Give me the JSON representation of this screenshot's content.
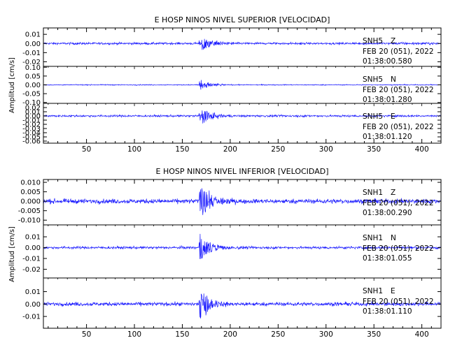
{
  "chart_data": [
    {
      "type": "line",
      "title": "E HOSP NINOS NIVEL SUPERIOR [VELOCIDAD]",
      "ylabel": "Amplitud [cm/s]",
      "xlabel": "",
      "xlim": [
        5,
        420
      ],
      "x_ticks": [
        50,
        100,
        150,
        200,
        250,
        300,
        350,
        400
      ],
      "x_tick_labels": [
        "50",
        "100",
        "150",
        "200",
        "250",
        "300",
        "350",
        "400"
      ],
      "grid": false,
      "series_color": "#1a1aff",
      "series": [
        {
          "station": "SNH5",
          "component": "Z",
          "date": "FEB 20 (051), 2022",
          "time": "01:38:00.580",
          "ylim": [
            -0.025,
            0.017
          ],
          "y_ticks": [
            0.01,
            0.0,
            -0.01,
            -0.02
          ],
          "y_tick_labels": [
            "0.01",
            "0.00",
            "-0.01",
            "-0.02"
          ],
          "noise": 0.0012,
          "event_start": 167,
          "event_peak": 0.011,
          "decay": 12
        },
        {
          "station": "SNH5",
          "component": "N",
          "date": "FEB 20 (051), 2022",
          "time": "01:38:01.280",
          "ylim": [
            -0.105,
            0.105
          ],
          "y_ticks": [
            0.1,
            0.05,
            0.0,
            -0.05,
            -0.1
          ],
          "y_tick_labels": [
            "0.10",
            "0.05",
            "0.00",
            "-0.05",
            "-0.10"
          ],
          "noise": 0.0025,
          "event_start": 167,
          "event_peak": 0.04,
          "decay": 10
        },
        {
          "station": "SNH5",
          "component": "E",
          "date": "FEB 20 (051), 2022",
          "time": "01:38:01.120",
          "ylim": [
            -0.065,
            0.03
          ],
          "y_ticks": [
            0.02,
            0.01,
            0.0,
            -0.01,
            -0.02,
            -0.03,
            -0.04,
            -0.05,
            -0.06
          ],
          "y_tick_labels": [
            "0.02",
            "0.01",
            "0.00",
            "-0.01",
            "-0.02",
            "-0.03",
            "-0.04",
            "-0.05",
            "-0.06"
          ],
          "noise": 0.0025,
          "event_start": 167,
          "event_peak": 0.025,
          "decay": 12
        }
      ]
    },
    {
      "type": "line",
      "title": "E HOSP NINOS NIVEL INFERIOR [VELOCIDAD]",
      "ylabel": "Amplitud [cm/s]",
      "xlabel": "",
      "xlim": [
        5,
        420
      ],
      "x_ticks": [
        50,
        100,
        150,
        200,
        250,
        300,
        350,
        400
      ],
      "x_tick_labels": [
        "50",
        "100",
        "150",
        "200",
        "250",
        "300",
        "350",
        "400"
      ],
      "grid": false,
      "series_color": "#1a1aff",
      "series": [
        {
          "station": "SNH1",
          "component": "Z",
          "date": "FEB 20 (051), 2022",
          "time": "01:38:00.290",
          "ylim": [
            -0.0125,
            0.0115
          ],
          "y_ticks": [
            0.01,
            0.005,
            0.0,
            -0.005,
            -0.01
          ],
          "y_tick_labels": [
            "0.010",
            "0.005",
            "0.000",
            "-0.005",
            "-0.010"
          ],
          "noise": 0.0012,
          "event_start": 167,
          "event_peak": 0.009,
          "decay": 14
        },
        {
          "station": "SNH1",
          "component": "N",
          "date": "FEB 20 (051), 2022",
          "time": "01:38:01.055",
          "ylim": [
            -0.028,
            0.021
          ],
          "y_ticks": [
            0.01,
            0.0,
            -0.01,
            -0.02
          ],
          "y_tick_labels": [
            "0.01",
            "0.00",
            "-0.01",
            "-0.02"
          ],
          "noise": 0.0012,
          "event_start": 167,
          "event_peak": 0.014,
          "decay": 12
        },
        {
          "station": "SNH1",
          "component": "E",
          "date": "FEB 20 (051), 2022",
          "time": "01:38:01.110",
          "ylim": [
            -0.0195,
            0.021
          ],
          "y_ticks": [
            0.01,
            0.0,
            -0.01
          ],
          "y_tick_labels": [
            "0.01",
            "0.00",
            "-0.01"
          ],
          "noise": 0.0015,
          "event_start": 167,
          "event_peak": 0.014,
          "decay": 12
        }
      ]
    }
  ]
}
